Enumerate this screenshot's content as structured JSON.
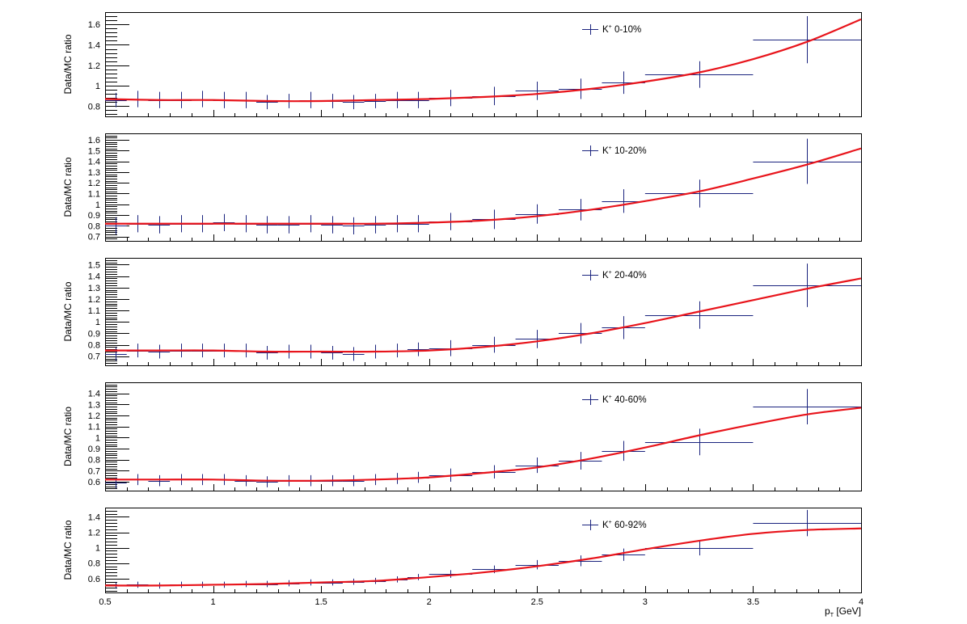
{
  "chart_data": [
    {
      "type": "scatter",
      "legend": {
        "particle": "K",
        "charge": "+",
        "label": "0-10%"
      },
      "ylabel": "Data/MC ratio",
      "ylim": [
        0.7,
        1.72
      ],
      "yticks": [
        0.8,
        1,
        1.2,
        1.4,
        1.6
      ],
      "ytick_labels": [
        "0.8",
        "1",
        "1.2",
        "1.4",
        "1.6"
      ],
      "ytick_step": 0.2,
      "xlim": [
        0.5,
        4
      ],
      "series": [
        {
          "kind": "points_with_errors",
          "x": [
            0.55,
            0.65,
            0.75,
            0.85,
            0.95,
            1.05,
            1.15,
            1.25,
            1.35,
            1.45,
            1.55,
            1.65,
            1.75,
            1.85,
            1.95,
            2.1,
            2.3,
            2.5,
            2.7,
            2.9,
            3.25,
            3.75
          ],
          "y": [
            0.86,
            0.87,
            0.86,
            0.86,
            0.87,
            0.86,
            0.86,
            0.84,
            0.85,
            0.86,
            0.85,
            0.84,
            0.85,
            0.86,
            0.86,
            0.88,
            0.9,
            0.95,
            0.97,
            1.03,
            1.11,
            1.45
          ],
          "xerr": [
            0.05,
            0.05,
            0.05,
            0.05,
            0.05,
            0.05,
            0.05,
            0.05,
            0.05,
            0.05,
            0.05,
            0.05,
            0.05,
            0.05,
            0.05,
            0.1,
            0.1,
            0.1,
            0.1,
            0.1,
            0.25,
            0.25
          ],
          "yerr": [
            0.07,
            0.08,
            0.08,
            0.08,
            0.08,
            0.08,
            0.08,
            0.07,
            0.07,
            0.08,
            0.07,
            0.07,
            0.07,
            0.08,
            0.08,
            0.08,
            0.09,
            0.09,
            0.1,
            0.11,
            0.13,
            0.23
          ],
          "color": "#1a237e"
        },
        {
          "kind": "fit_curve",
          "x": [
            0.5,
            0.75,
            1.0,
            1.25,
            1.5,
            1.75,
            2.0,
            2.25,
            2.5,
            2.75,
            3.0,
            3.25,
            3.5,
            3.75,
            4.0
          ],
          "y": [
            0.87,
            0.86,
            0.86,
            0.85,
            0.85,
            0.86,
            0.87,
            0.89,
            0.92,
            0.97,
            1.04,
            1.13,
            1.26,
            1.43,
            1.65
          ],
          "color": "#e8141b"
        }
      ]
    },
    {
      "type": "scatter",
      "legend": {
        "particle": "K",
        "charge": "+",
        "label": "10-20%"
      },
      "ylabel": "Data/MC ratio",
      "ylim": [
        0.66,
        1.66
      ],
      "yticks": [
        0.7,
        0.8,
        0.9,
        1,
        1.1,
        1.2,
        1.3,
        1.4,
        1.5,
        1.6
      ],
      "ytick_labels": [
        "0.7",
        "0.8",
        "0.9",
        "1",
        "1.1",
        "1.2",
        "1.3",
        "1.4",
        "1.5",
        "1.6"
      ],
      "ytick_step": 0.1,
      "xlim": [
        0.5,
        4
      ],
      "series": [
        {
          "kind": "points_with_errors",
          "x": [
            0.55,
            0.65,
            0.75,
            0.85,
            0.95,
            1.05,
            1.15,
            1.25,
            1.35,
            1.45,
            1.55,
            1.65,
            1.75,
            1.85,
            1.95,
            2.1,
            2.3,
            2.5,
            2.7,
            2.9,
            3.25,
            3.75
          ],
          "y": [
            0.8,
            0.82,
            0.81,
            0.82,
            0.82,
            0.83,
            0.82,
            0.81,
            0.81,
            0.82,
            0.81,
            0.8,
            0.81,
            0.82,
            0.82,
            0.84,
            0.86,
            0.91,
            0.95,
            1.03,
            1.1,
            1.4
          ],
          "xerr": [
            0.05,
            0.05,
            0.05,
            0.05,
            0.05,
            0.05,
            0.05,
            0.05,
            0.05,
            0.05,
            0.05,
            0.05,
            0.05,
            0.05,
            0.05,
            0.1,
            0.1,
            0.1,
            0.1,
            0.1,
            0.25,
            0.25
          ],
          "yerr": [
            0.08,
            0.08,
            0.08,
            0.08,
            0.08,
            0.08,
            0.08,
            0.08,
            0.08,
            0.08,
            0.08,
            0.08,
            0.08,
            0.08,
            0.08,
            0.08,
            0.09,
            0.09,
            0.1,
            0.11,
            0.13,
            0.21
          ],
          "color": "#1a237e"
        },
        {
          "kind": "fit_curve",
          "x": [
            0.5,
            0.75,
            1.0,
            1.25,
            1.5,
            1.75,
            2.0,
            2.25,
            2.5,
            2.75,
            3.0,
            3.25,
            3.5,
            3.75,
            4.0
          ],
          "y": [
            0.82,
            0.82,
            0.82,
            0.82,
            0.82,
            0.82,
            0.83,
            0.85,
            0.89,
            0.95,
            1.03,
            1.12,
            1.24,
            1.37,
            1.52
          ],
          "color": "#e8141b"
        }
      ]
    },
    {
      "type": "scatter",
      "legend": {
        "particle": "K",
        "charge": "+",
        "label": "20-40%"
      },
      "ylabel": "Data/MC ratio",
      "ylim": [
        0.62,
        1.56
      ],
      "yticks": [
        0.7,
        0.8,
        0.9,
        1,
        1.1,
        1.2,
        1.3,
        1.4,
        1.5
      ],
      "ytick_labels": [
        "0.7",
        "0.8",
        "0.9",
        "1",
        "1.1",
        "1.2",
        "1.3",
        "1.4",
        "1.5"
      ],
      "ytick_step": 0.1,
      "xlim": [
        0.5,
        4
      ],
      "series": [
        {
          "kind": "points_with_errors",
          "x": [
            0.55,
            0.65,
            0.75,
            0.85,
            0.95,
            1.05,
            1.15,
            1.25,
            1.35,
            1.45,
            1.55,
            1.65,
            1.75,
            1.85,
            1.95,
            2.1,
            2.3,
            2.5,
            2.7,
            2.9,
            3.25,
            3.75
          ],
          "y": [
            0.72,
            0.75,
            0.74,
            0.75,
            0.75,
            0.75,
            0.75,
            0.73,
            0.74,
            0.74,
            0.73,
            0.72,
            0.74,
            0.75,
            0.76,
            0.77,
            0.8,
            0.85,
            0.9,
            0.95,
            1.06,
            1.32
          ],
          "xerr": [
            0.05,
            0.05,
            0.05,
            0.05,
            0.05,
            0.05,
            0.05,
            0.05,
            0.05,
            0.05,
            0.05,
            0.05,
            0.05,
            0.05,
            0.05,
            0.1,
            0.1,
            0.1,
            0.1,
            0.1,
            0.25,
            0.25
          ],
          "yerr": [
            0.06,
            0.06,
            0.06,
            0.06,
            0.06,
            0.06,
            0.06,
            0.06,
            0.06,
            0.06,
            0.06,
            0.06,
            0.06,
            0.06,
            0.06,
            0.07,
            0.07,
            0.08,
            0.09,
            0.1,
            0.12,
            0.19
          ],
          "color": "#1a237e"
        },
        {
          "kind": "fit_curve",
          "x": [
            0.5,
            0.75,
            1.0,
            1.25,
            1.5,
            1.75,
            2.0,
            2.25,
            2.5,
            2.75,
            3.0,
            3.25,
            3.5,
            3.75,
            4.0
          ],
          "y": [
            0.75,
            0.75,
            0.75,
            0.74,
            0.74,
            0.74,
            0.75,
            0.78,
            0.83,
            0.9,
            0.99,
            1.09,
            1.19,
            1.29,
            1.38
          ],
          "color": "#e8141b"
        }
      ]
    },
    {
      "type": "scatter",
      "legend": {
        "particle": "K",
        "charge": "+",
        "label": "40-60%"
      },
      "ylabel": "Data/MC ratio",
      "ylim": [
        0.52,
        1.5
      ],
      "yticks": [
        0.6,
        0.7,
        0.8,
        0.9,
        1,
        1.1,
        1.2,
        1.3,
        1.4
      ],
      "ytick_labels": [
        "0.6",
        "0.7",
        "0.8",
        "0.9",
        "1",
        "1.1",
        "1.2",
        "1.3",
        "1.4"
      ],
      "ytick_step": 0.1,
      "xlim": [
        0.5,
        4
      ],
      "series": [
        {
          "kind": "points_with_errors",
          "x": [
            0.55,
            0.65,
            0.75,
            0.85,
            0.95,
            1.05,
            1.15,
            1.25,
            1.35,
            1.45,
            1.55,
            1.65,
            1.75,
            1.85,
            1.95,
            2.1,
            2.3,
            2.5,
            2.7,
            2.9,
            3.25,
            3.75
          ],
          "y": [
            0.59,
            0.62,
            0.61,
            0.62,
            0.62,
            0.62,
            0.61,
            0.6,
            0.61,
            0.61,
            0.61,
            0.61,
            0.62,
            0.63,
            0.64,
            0.66,
            0.69,
            0.75,
            0.79,
            0.88,
            0.96,
            1.28
          ],
          "xerr": [
            0.05,
            0.05,
            0.05,
            0.05,
            0.05,
            0.05,
            0.05,
            0.05,
            0.05,
            0.05,
            0.05,
            0.05,
            0.05,
            0.05,
            0.05,
            0.1,
            0.1,
            0.1,
            0.1,
            0.1,
            0.25,
            0.25
          ],
          "yerr": [
            0.05,
            0.05,
            0.05,
            0.05,
            0.05,
            0.05,
            0.05,
            0.05,
            0.05,
            0.05,
            0.05,
            0.05,
            0.05,
            0.05,
            0.05,
            0.06,
            0.06,
            0.07,
            0.08,
            0.09,
            0.12,
            0.16
          ],
          "color": "#1a237e"
        },
        {
          "kind": "fit_curve",
          "x": [
            0.5,
            0.75,
            1.0,
            1.25,
            1.5,
            1.75,
            2.0,
            2.25,
            2.5,
            2.75,
            3.0,
            3.25,
            3.5,
            3.75,
            4.0
          ],
          "y": [
            0.62,
            0.62,
            0.62,
            0.61,
            0.61,
            0.62,
            0.64,
            0.68,
            0.73,
            0.81,
            0.91,
            1.02,
            1.12,
            1.21,
            1.27
          ],
          "color": "#e8141b"
        }
      ]
    },
    {
      "type": "scatter",
      "legend": {
        "particle": "K",
        "charge": "+",
        "label": "60-92%"
      },
      "ylabel": "Data/MC ratio",
      "ylim": [
        0.42,
        1.52
      ],
      "yticks": [
        0.6,
        0.8,
        1,
        1.2,
        1.4
      ],
      "ytick_labels": [
        "0.6",
        "0.8",
        "1",
        "1.2",
        "1.4"
      ],
      "ytick_step": 0.2,
      "xlim": [
        0.5,
        4
      ],
      "xticks": [
        0.5,
        1,
        1.5,
        2,
        2.5,
        3,
        3.5,
        4
      ],
      "xtick_labels": [
        "0.5",
        "1",
        "1.5",
        "2",
        "2.5",
        "3",
        "3.5",
        "4"
      ],
      "xlabel": {
        "main": "p",
        "sub": "T",
        "unit": "[GeV]"
      },
      "series": [
        {
          "kind": "points_with_errors",
          "x": [
            0.55,
            0.65,
            0.75,
            0.85,
            0.95,
            1.05,
            1.15,
            1.25,
            1.35,
            1.45,
            1.55,
            1.65,
            1.75,
            1.85,
            1.95,
            2.1,
            2.3,
            2.5,
            2.7,
            2.9,
            3.25,
            3.75
          ],
          "y": [
            0.51,
            0.52,
            0.51,
            0.52,
            0.52,
            0.52,
            0.53,
            0.53,
            0.54,
            0.55,
            0.55,
            0.56,
            0.57,
            0.59,
            0.62,
            0.66,
            0.72,
            0.78,
            0.83,
            0.91,
            1.0,
            1.32
          ],
          "xerr": [
            0.05,
            0.05,
            0.05,
            0.05,
            0.05,
            0.05,
            0.05,
            0.05,
            0.05,
            0.05,
            0.05,
            0.05,
            0.05,
            0.05,
            0.05,
            0.1,
            0.1,
            0.1,
            0.1,
            0.1,
            0.25,
            0.25
          ],
          "yerr": [
            0.04,
            0.04,
            0.04,
            0.04,
            0.04,
            0.04,
            0.04,
            0.04,
            0.04,
            0.04,
            0.04,
            0.04,
            0.04,
            0.04,
            0.04,
            0.05,
            0.05,
            0.06,
            0.07,
            0.08,
            0.1,
            0.17
          ],
          "color": "#1a237e"
        },
        {
          "kind": "fit_curve",
          "x": [
            0.5,
            0.75,
            1.0,
            1.25,
            1.5,
            1.75,
            2.0,
            2.25,
            2.5,
            2.75,
            3.0,
            3.25,
            3.5,
            3.75,
            4.0
          ],
          "y": [
            0.51,
            0.51,
            0.52,
            0.53,
            0.55,
            0.57,
            0.62,
            0.68,
            0.76,
            0.86,
            0.98,
            1.09,
            1.18,
            1.23,
            1.25
          ],
          "color": "#e8141b"
        }
      ]
    }
  ]
}
